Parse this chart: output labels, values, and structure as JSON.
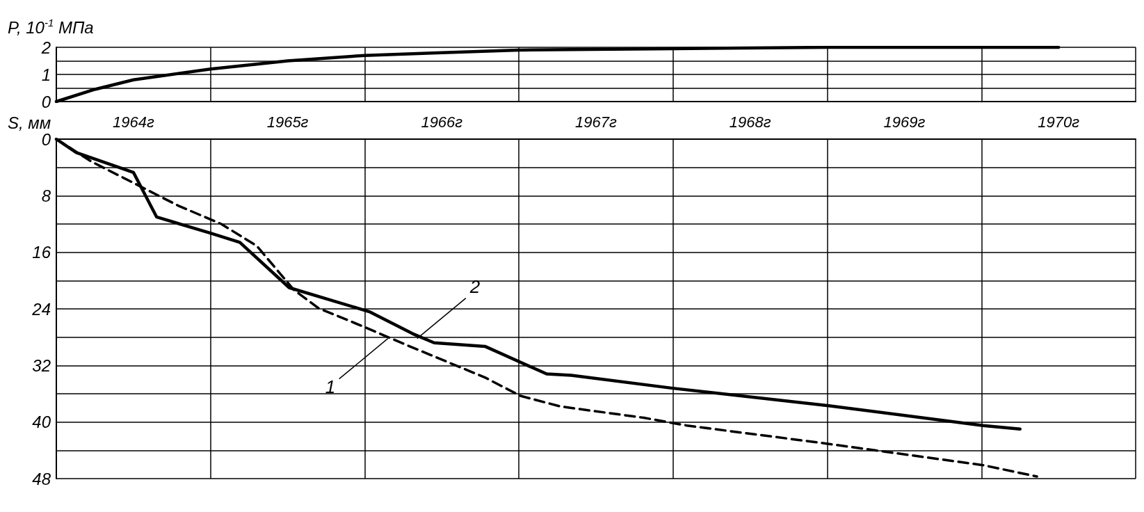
{
  "chart_data": [
    {
      "type": "line",
      "ylabel": "P, 10$^{-1}$ МПа",
      "xlim": [
        1964,
        1971
      ],
      "xticks": [
        {
          "value": 1964,
          "label": null
        },
        {
          "value": 1965,
          "label": null
        },
        {
          "value": 1966,
          "label": null
        },
        {
          "value": 1967,
          "label": null
        },
        {
          "value": 1968,
          "label": null
        },
        {
          "value": 1969,
          "label": null
        },
        {
          "value": 1970,
          "label": null
        },
        {
          "value": 1971,
          "label": null
        }
      ],
      "ylim": [
        0,
        2
      ],
      "yticks": [
        0,
        {
          "value": 0.5,
          "label": null
        },
        1,
        {
          "value": 1.5,
          "label": null
        },
        2
      ],
      "grid": true,
      "tick_labels": "y",
      "marker": "none",
      "series": [
        {
          "color": "#000000",
          "line_style": "solid",
          "x": [
            1964,
            1964.25,
            1964.5,
            1965,
            1965.5,
            1966,
            1966.5,
            1967,
            1968,
            1969,
            1970,
            1970.5
          ],
          "values": [
            0,
            0.45,
            0.8,
            1.2,
            1.5,
            1.7,
            1.8,
            1.9,
            1.95,
            2,
            2,
            2
          ]
        }
      ]
    },
    {
      "type": "line",
      "ylabel": "S, мм",
      "xlim": [
        1964,
        1971
      ],
      "xticks": [
        {
          "value": 1964,
          "label": null
        },
        {
          "value": 1964.5,
          "label": "1964г"
        },
        {
          "value": 1965,
          "label": null
        },
        {
          "value": 1965.5,
          "label": "1965г"
        },
        {
          "value": 1966,
          "label": null
        },
        {
          "value": 1966.5,
          "label": "1966г"
        },
        {
          "value": 1967,
          "label": null
        },
        {
          "value": 1967.5,
          "label": "1967г"
        },
        {
          "value": 1968,
          "label": null
        },
        {
          "value": 1968.5,
          "label": "1968г"
        },
        {
          "value": 1969,
          "label": null
        },
        {
          "value": 1969.5,
          "label": "1969г"
        },
        {
          "value": 1970,
          "label": null
        },
        {
          "value": 1970.5,
          "label": "1970г"
        },
        {
          "value": 1971,
          "label": null
        }
      ],
      "ylim": [
        48,
        0
      ],
      "yticks": [
        0,
        {
          "value": 4,
          "label": null
        },
        8,
        {
          "value": 12,
          "label": null
        },
        16,
        {
          "value": 20,
          "label": null
        },
        24,
        {
          "value": 28,
          "label": null
        },
        32,
        {
          "value": 36,
          "label": null
        },
        40,
        {
          "value": 44,
          "label": null
        },
        48
      ],
      "grid": true,
      "marker": "none",
      "annotations": [
        {
          "text": "1",
          "x": 1966.15,
          "y": 28.2
        },
        {
          "text": "2",
          "x": 1966.34,
          "y": 28.2
        }
      ],
      "series": [
        {
          "color": "#000000",
          "line_style": "dashed",
          "x": [
            1964,
            1964.23,
            1964.79,
            1965.07,
            1965.3,
            1965.54,
            1965.7,
            1965.98,
            1966.27,
            1966.78,
            1967.01,
            1967.27,
            1967.81,
            1968.09,
            1968.98,
            1970.01,
            1970.36
          ],
          "values": [
            0,
            3.2,
            9.4,
            12,
            15.1,
            21.3,
            23.9,
            26.4,
            29.1,
            33.7,
            36.3,
            37.8,
            39.4,
            40.5,
            43,
            46.1,
            47.7
          ]
        },
        {
          "color": "#000000",
          "line_style": "solid",
          "x": [
            1964,
            1964.13,
            1964.5,
            1964.65,
            1965,
            1965.19,
            1965.51,
            1966.03,
            1966.31,
            1966.45,
            1966.78,
            1967.18,
            1967.34,
            1967.99,
            1969.01,
            1970.01,
            1970.25
          ],
          "values": [
            0,
            1.9,
            4.7,
            11,
            13.3,
            14.6,
            21,
            24.4,
            27.5,
            28.8,
            29.3,
            33.2,
            33.4,
            35.2,
            37.7,
            40.5,
            41
          ]
        }
      ]
    }
  ]
}
